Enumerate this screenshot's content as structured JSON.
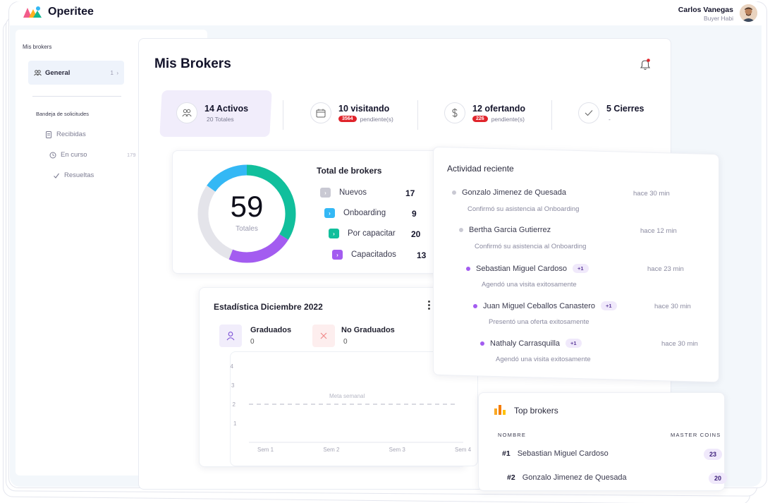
{
  "app": {
    "name": "Operitee"
  },
  "user": {
    "name": "Carlos Vanegas",
    "role": "Buyer Habi"
  },
  "sidebar": {
    "title": "Mis brokers",
    "general": {
      "label": "General",
      "count": "1"
    },
    "inbox_title": "Bandeja de solicitudes",
    "items": [
      {
        "label": "Recibidas",
        "count": ""
      },
      {
        "label": "En curso",
        "count": "179"
      },
      {
        "label": "Resueltas",
        "count": ""
      }
    ]
  },
  "page": {
    "title": "Mis Brokers"
  },
  "stats": [
    {
      "big": "14 Activos",
      "small": "20 Totales",
      "badge": ""
    },
    {
      "big": "10 visitando",
      "small": "pendiente(s)",
      "badge": "3564"
    },
    {
      "big": "12 ofertando",
      "small": "pendiente(s)",
      "badge": "226"
    },
    {
      "big": "5 Cierres",
      "small": "-",
      "badge": ""
    }
  ],
  "totals": {
    "title": "Total de brokers",
    "number": "59",
    "number_label": "Totales",
    "rows": [
      {
        "label": "Nuevos",
        "value": "17",
        "color": "#c9c9d3"
      },
      {
        "label": "Onboarding",
        "value": "9",
        "color": "#34b8f5"
      },
      {
        "label": "Por capacitar",
        "value": "20",
        "color": "#11bf9c"
      },
      {
        "label": "Capacitados",
        "value": "13",
        "color": "#a35cf0"
      }
    ]
  },
  "stats_month": {
    "title": "Estadística Diciembre 2022",
    "graduated_label": "Graduados",
    "graduated_value": "0",
    "not_graduated_label": "No Graduados",
    "not_graduated_value": "0",
    "goal_label": "Meta semanal"
  },
  "chart_data": {
    "type": "line",
    "title": "",
    "xlabel": "",
    "ylabel": "",
    "categories": [
      "Sem 1",
      "Sem 2",
      "Sem 3",
      "Sem 4"
    ],
    "y_ticks": [
      "1",
      "2",
      "3",
      "4"
    ],
    "ylim": [
      0,
      4
    ],
    "goal": 2,
    "series": [],
    "grid": false
  },
  "activity": {
    "title": "Actividad reciente",
    "items": [
      {
        "name": "Gonzalo Jimenez de Quesada",
        "desc": "Confirmó su asistencia al Onboarding",
        "time": "hace 30 min",
        "tag": "",
        "color": "#c9c9d3"
      },
      {
        "name": "Bertha Garcia Gutierrez",
        "desc": "Confirmó su asistencia al Onboarding",
        "time": "hace 12 min",
        "tag": "",
        "color": "#c9c9d3"
      },
      {
        "name": "Sebastian Miguel Cardoso",
        "desc": "Agendó una visita exitosamente",
        "time": "hace 23 min",
        "tag": "+1",
        "color": "#a35cf0"
      },
      {
        "name": "Juan Miguel Ceballos Canastero",
        "desc": "Presentó una oferta exitosamente",
        "time": "hace 30 min",
        "tag": "+1",
        "color": "#a35cf0"
      },
      {
        "name": "Nathaly Carrasquilla",
        "desc": "Agendó una visita exitosamente",
        "time": "hace 30 min",
        "tag": "+1",
        "color": "#a35cf0"
      }
    ]
  },
  "top_brokers": {
    "title": "Top brokers",
    "col_name": "NOMBRE",
    "col_coins": "MASTER COINS",
    "rows": [
      {
        "rank": "#1",
        "name": "Sebastian Miguel Cardoso",
        "coins": "23"
      },
      {
        "rank": "#2",
        "name": "Gonzalo Jimenez de Quesada",
        "coins": "20"
      }
    ]
  }
}
